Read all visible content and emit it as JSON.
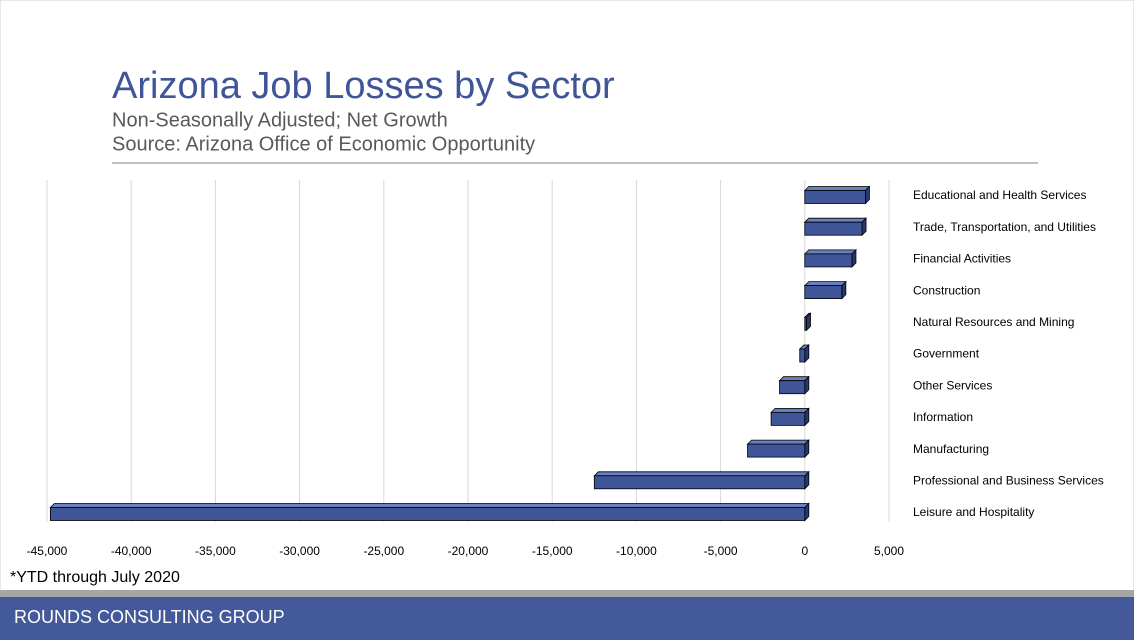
{
  "slide": {
    "title": "Arizona Job Losses by Sector",
    "subtitle_lines": [
      "Non-Seasonally Adjusted; Net Growth",
      "Source: Arizona Office of Economic Opportunity"
    ],
    "footnote": "*YTD through July 2020",
    "footer": "ROUNDS CONSULTING GROUP"
  },
  "chart_data": {
    "type": "bar",
    "orientation": "horizontal",
    "color": "#3f5597",
    "categories": [
      "Educational and Health Services",
      "Trade, Transportation, and Utilities",
      "Financial Activities",
      "Construction",
      "Natural Resources and Mining",
      "Government",
      "Other Services",
      "Information",
      "Manufacturing",
      "Professional and Business Services",
      "Leisure and Hospitality"
    ],
    "values": [
      3600,
      3400,
      2800,
      2200,
      100,
      -300,
      -1500,
      -2000,
      -3400,
      -12500,
      -44800
    ],
    "xlim": [
      -45000,
      5000
    ],
    "xticks": [
      {
        "value": -45000,
        "label": "-45,000"
      },
      {
        "value": -40000,
        "label": "-40,000"
      },
      {
        "value": -35000,
        "label": "-35,000"
      },
      {
        "value": -30000,
        "label": "-30,000"
      },
      {
        "value": -25000,
        "label": "-25,000"
      },
      {
        "value": -20000,
        "label": "-20,000"
      },
      {
        "value": -15000,
        "label": "-15,000"
      },
      {
        "value": -10000,
        "label": "-10,000"
      },
      {
        "value": -5000,
        "label": "-5,000"
      },
      0,
      {
        "value": 5000,
        "label": "5,000"
      }
    ],
    "grid": true
  }
}
